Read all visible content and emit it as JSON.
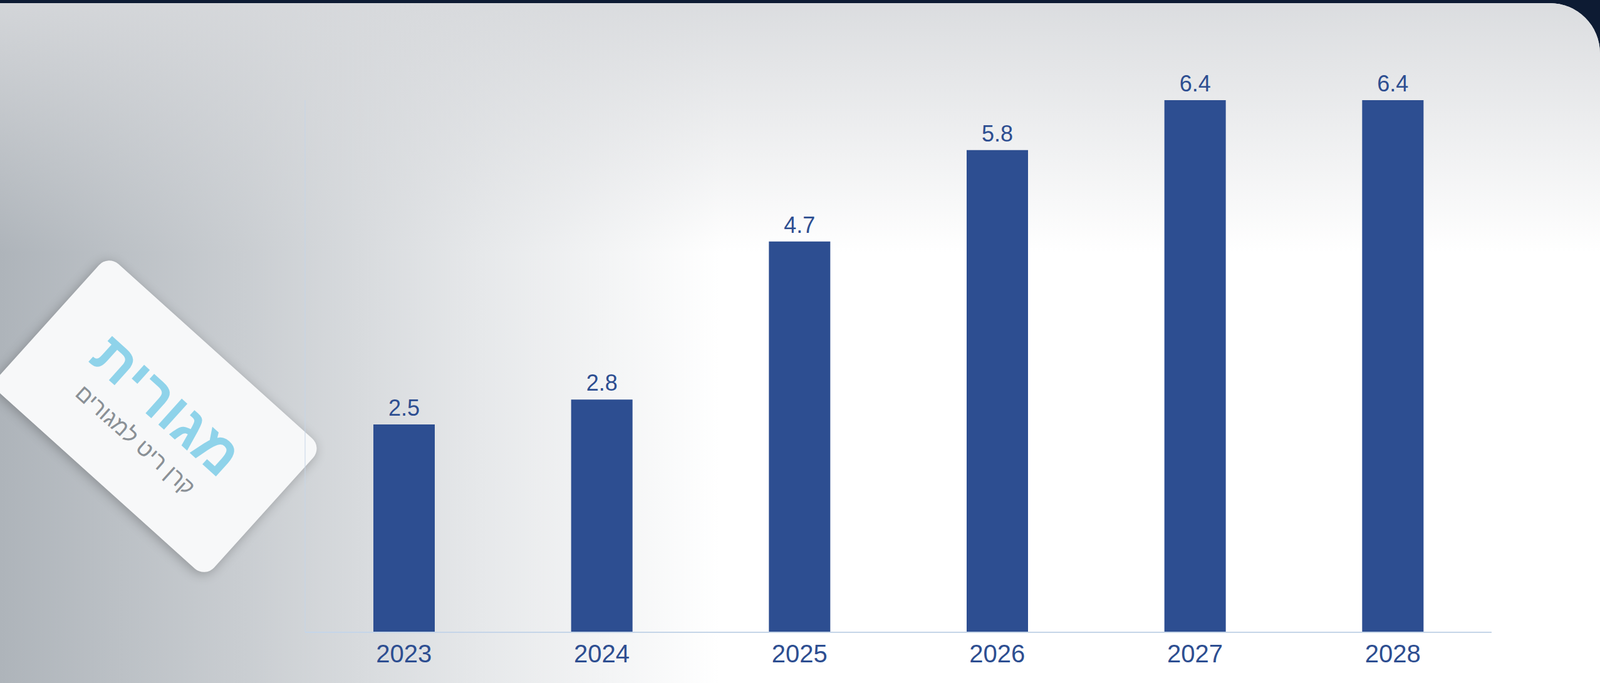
{
  "chart_data": {
    "type": "bar",
    "categories": [
      "2023",
      "2024",
      "2025",
      "2026",
      "2027",
      "2028"
    ],
    "values": [
      2.5,
      2.8,
      4.7,
      5.8,
      6.4,
      6.4
    ],
    "color": "#2d4e91",
    "ylim": [
      0,
      6.4
    ],
    "yticks": [],
    "grid": false,
    "data_labels": true,
    "tick_labels": "x",
    "annotations": [
      "מגורית",
      "קרן ריט למגורים"
    ]
  }
}
